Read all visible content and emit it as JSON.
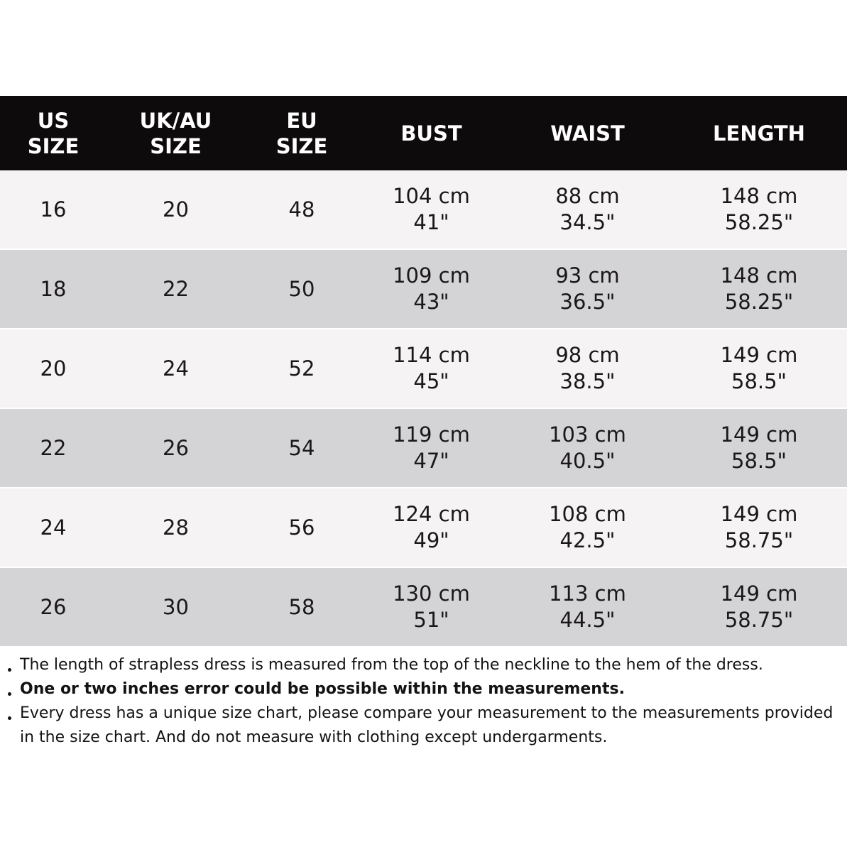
{
  "chart_data": {
    "type": "table",
    "columns": [
      "US SIZE",
      "UK/AU SIZE",
      "EU SIZE",
      "BUST",
      "WAIST",
      "LENGTH"
    ],
    "rows": [
      [
        "16",
        "20",
        "48",
        "104 cm / 41\"",
        "88 cm / 34.5\"",
        "148 cm / 58.25\""
      ],
      [
        "18",
        "22",
        "50",
        "109 cm / 43\"",
        "93 cm / 36.5\"",
        "148 cm / 58.25\""
      ],
      [
        "20",
        "24",
        "52",
        "114 cm / 45\"",
        "98 cm / 38.5\"",
        "149 cm / 58.5\""
      ],
      [
        "22",
        "26",
        "54",
        "119 cm / 47\"",
        "103 cm / 40.5\"",
        "149 cm / 58.5\""
      ],
      [
        "24",
        "28",
        "56",
        "124 cm / 49\"",
        "108 cm / 42.5\"",
        "149 cm / 58.75\""
      ],
      [
        "26",
        "30",
        "58",
        "130 cm / 51\"",
        "113 cm / 44.5\"",
        "149 cm / 58.75\""
      ]
    ],
    "layout_hints": {
      "header_style": "black bar, white bold text",
      "row_striping": "white / gray alternating",
      "grid": "off"
    }
  },
  "colors": {
    "header_bg": "#0e0b0c",
    "header_text": "#ffffff",
    "row_light": "#f6f3f4",
    "row_dark": "#d4d3d5",
    "cell_text": "#1a1718",
    "note_text": "#141213"
  },
  "size_chart": {
    "headers": [
      {
        "lines": [
          "US",
          "SIZE"
        ]
      },
      {
        "lines": [
          "UK/AU",
          "SIZE"
        ]
      },
      {
        "lines": [
          "EU",
          "SIZE"
        ]
      },
      {
        "lines": [
          "BUST"
        ]
      },
      {
        "lines": [
          "WAIST"
        ]
      },
      {
        "lines": [
          "LENGTH"
        ]
      }
    ],
    "rows": [
      {
        "cells": [
          [
            "16"
          ],
          [
            "20"
          ],
          [
            "48"
          ],
          [
            "104 cm",
            "41\""
          ],
          [
            "88 cm",
            "34.5\""
          ],
          [
            "148 cm",
            "58.25\""
          ]
        ]
      },
      {
        "cells": [
          [
            "18"
          ],
          [
            "22"
          ],
          [
            "50"
          ],
          [
            "109 cm",
            "43\""
          ],
          [
            "93 cm",
            "36.5\""
          ],
          [
            "148 cm",
            "58.25\""
          ]
        ]
      },
      {
        "cells": [
          [
            "20"
          ],
          [
            "24"
          ],
          [
            "52"
          ],
          [
            "114 cm",
            "45\""
          ],
          [
            "98 cm",
            "38.5\""
          ],
          [
            "149 cm",
            "58.5\""
          ]
        ]
      },
      {
        "cells": [
          [
            "22"
          ],
          [
            "26"
          ],
          [
            "54"
          ],
          [
            "119 cm",
            "47\""
          ],
          [
            "103 cm",
            "40.5\""
          ],
          [
            "149 cm",
            "58.5\""
          ]
        ]
      },
      {
        "cells": [
          [
            "24"
          ],
          [
            "28"
          ],
          [
            "56"
          ],
          [
            "124 cm",
            "49\""
          ],
          [
            "108 cm",
            "42.5\""
          ],
          [
            "149 cm",
            "58.75\""
          ]
        ]
      },
      {
        "cells": [
          [
            "26"
          ],
          [
            "30"
          ],
          [
            "58"
          ],
          [
            "130 cm",
            "51\""
          ],
          [
            "113 cm",
            "44.5\""
          ],
          [
            "149 cm",
            "58.75\""
          ]
        ]
      }
    ]
  },
  "notes": [
    {
      "text": "The length of strapless dress is measured from the top of the neckline to the hem of the dress.",
      "bold": false
    },
    {
      "text": "One or two inches error could be possible within the measurements.",
      "bold": true
    },
    {
      "text": "Every dress has a unique size chart, please compare your measurement to the measurements provided in the size chart. And do not measure with clothing except undergarments.",
      "bold": false
    }
  ]
}
